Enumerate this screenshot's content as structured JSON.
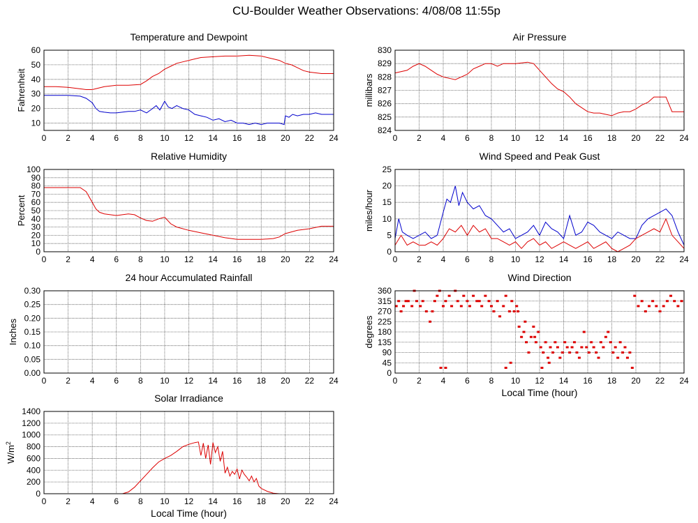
{
  "title": "CU-Boulder Weather Observations: 4/08/08 11:55p",
  "colors": {
    "red": "#dd0000",
    "blue": "#0000cc",
    "grid": "#555555",
    "axis": "#000000"
  },
  "chart_data": [
    {
      "id": "temp",
      "type": "line",
      "title": "Temperature and Dewpoint",
      "ylabel": "Fahrenheit",
      "xlabel": "",
      "xlim": [
        0,
        24
      ],
      "ylim": [
        5,
        60
      ],
      "xticks": [
        0,
        2,
        4,
        6,
        8,
        10,
        12,
        14,
        16,
        18,
        20,
        22,
        24
      ],
      "yticks": [
        10,
        20,
        30,
        40,
        50,
        60
      ],
      "grid": true,
      "series": [
        {
          "color": "red",
          "x": [
            0,
            1,
            2,
            3,
            3.5,
            4,
            4.5,
            5,
            6,
            7,
            8,
            8.5,
            9,
            9.5,
            10,
            10.5,
            11,
            11.5,
            12,
            12.5,
            13,
            14,
            15,
            16,
            17,
            18,
            18.5,
            19,
            19.5,
            20,
            20.5,
            21,
            21.5,
            22,
            23,
            24
          ],
          "y": [
            35,
            35,
            34.5,
            33.5,
            33,
            33,
            34,
            35,
            36,
            36,
            36.5,
            39,
            42,
            44,
            47,
            49,
            51,
            52,
            53,
            54,
            55,
            55.5,
            56,
            56,
            56.5,
            56,
            55,
            54,
            53,
            51,
            50,
            48,
            46,
            45,
            44,
            44
          ]
        },
        {
          "color": "blue",
          "x": [
            0,
            1,
            2,
            3,
            3.5,
            4,
            4.3,
            4.6,
            5,
            5.5,
            6,
            7,
            7.5,
            8,
            8.5,
            9,
            9.3,
            9.6,
            10,
            10.3,
            10.6,
            11,
            11.5,
            12,
            12.5,
            13,
            13.5,
            14,
            14.5,
            15,
            15.5,
            16,
            16.5,
            17,
            17.5,
            18,
            18.5,
            19,
            19.5,
            19.9,
            20,
            20.3,
            20.6,
            21,
            21.5,
            22,
            22.5,
            23,
            23.5,
            24
          ],
          "y": [
            29,
            29,
            29,
            28.5,
            27,
            24,
            20,
            18,
            17.5,
            17,
            17,
            18,
            18,
            19,
            17,
            20,
            22,
            19,
            25,
            21,
            20,
            22,
            20,
            19,
            16,
            15,
            14,
            12,
            13,
            11,
            12,
            10,
            10,
            9,
            10,
            9,
            10,
            10,
            10,
            9,
            15,
            14,
            16,
            15,
            16,
            16,
            17,
            16,
            16,
            16
          ]
        }
      ]
    },
    {
      "id": "pressure",
      "type": "line",
      "title": "Air Pressure",
      "ylabel": "millibars",
      "xlabel": "",
      "xlim": [
        0,
        24
      ],
      "ylim": [
        824,
        830
      ],
      "xticks": [
        0,
        2,
        4,
        6,
        8,
        10,
        12,
        14,
        16,
        18,
        20,
        22,
        24
      ],
      "yticks": [
        824,
        825,
        826,
        827,
        828,
        829,
        830
      ],
      "grid": true,
      "series": [
        {
          "color": "red",
          "x": [
            0,
            1,
            1.5,
            2,
            2.5,
            3,
            3.5,
            4,
            4.5,
            5,
            5.5,
            6,
            6.5,
            7,
            7.5,
            8,
            8.5,
            9,
            10,
            11,
            11.5,
            12,
            12.5,
            13,
            13.5,
            14,
            14.5,
            15,
            15.5,
            16,
            16.5,
            17,
            17.5,
            18,
            18.5,
            19,
            19.5,
            20,
            20.5,
            21,
            21.5,
            22,
            22.5,
            23,
            24
          ],
          "y": [
            828.3,
            828.5,
            828.8,
            829,
            828.8,
            828.5,
            828.2,
            828,
            827.9,
            827.8,
            828,
            828.2,
            828.6,
            828.8,
            829,
            829,
            828.8,
            829,
            829,
            829.1,
            829,
            828.5,
            828,
            827.5,
            827.1,
            826.9,
            826.5,
            826,
            825.7,
            825.4,
            825.3,
            825.3,
            825.2,
            825.1,
            825.3,
            825.4,
            825.4,
            825.6,
            825.9,
            826.1,
            826.5,
            826.5,
            826.5,
            825.4,
            825.4
          ]
        }
      ]
    },
    {
      "id": "rh",
      "type": "line",
      "title": "Relative Humidity",
      "ylabel": "Percent",
      "xlabel": "",
      "xlim": [
        0,
        24
      ],
      "ylim": [
        0,
        100
      ],
      "xticks": [
        0,
        2,
        4,
        6,
        8,
        10,
        12,
        14,
        16,
        18,
        20,
        22,
        24
      ],
      "yticks": [
        0,
        10,
        20,
        30,
        40,
        50,
        60,
        70,
        80,
        90,
        100
      ],
      "grid": true,
      "series": [
        {
          "color": "red",
          "x": [
            0,
            1,
            2,
            3,
            3.5,
            4,
            4.3,
            4.6,
            5,
            5.5,
            6,
            6.5,
            7,
            7.5,
            8,
            8.5,
            9,
            9.5,
            10,
            10.5,
            11,
            12,
            13,
            14,
            15,
            16,
            17,
            18,
            19,
            19.5,
            20,
            21,
            22,
            23,
            24
          ],
          "y": [
            78,
            78,
            78,
            78,
            73,
            60,
            52,
            48,
            46,
            45,
            44,
            45,
            46,
            45,
            41,
            38,
            37,
            40,
            42,
            34,
            30,
            26,
            23,
            20,
            17,
            15,
            15,
            15,
            16,
            18,
            22,
            26,
            28,
            31,
            31
          ]
        }
      ]
    },
    {
      "id": "wind",
      "type": "line",
      "title": "Wind Speed and Peak Gust",
      "ylabel": "miles/hour",
      "xlabel": "",
      "xlim": [
        0,
        24
      ],
      "ylim": [
        0,
        25
      ],
      "xticks": [
        0,
        2,
        4,
        6,
        8,
        10,
        12,
        14,
        16,
        18,
        20,
        22,
        24
      ],
      "yticks": [
        0,
        5,
        10,
        15,
        20,
        25
      ],
      "grid": true,
      "series": [
        {
          "color": "blue",
          "x": [
            0,
            0.3,
            0.6,
            1,
            1.5,
            2,
            2.5,
            3,
            3.5,
            4,
            4.3,
            4.6,
            5,
            5.3,
            5.6,
            6,
            6.5,
            7,
            7.5,
            8,
            8.5,
            9,
            9.5,
            10,
            10.5,
            11,
            11.5,
            12,
            12.5,
            13,
            13.5,
            14,
            14.5,
            15,
            15.5,
            16,
            16.5,
            17,
            17.5,
            18,
            18.5,
            19,
            19.5,
            20,
            20.5,
            21,
            21.5,
            22,
            22.5,
            23,
            23.5,
            24
          ],
          "y": [
            4,
            10,
            6,
            5,
            4,
            5,
            6,
            4,
            5,
            12,
            16,
            15,
            20,
            14,
            18,
            15,
            13,
            14,
            11,
            10,
            8,
            6,
            7,
            4,
            5,
            6,
            8,
            5,
            9,
            7,
            6,
            4,
            11,
            5,
            6,
            9,
            8,
            6,
            5,
            4,
            6,
            5,
            4,
            4,
            8,
            10,
            11,
            12,
            13,
            11,
            6,
            2
          ]
        },
        {
          "color": "red",
          "x": [
            0,
            0.5,
            1,
            1.5,
            2,
            2.5,
            3,
            3.5,
            4,
            4.5,
            5,
            5.5,
            6,
            6.5,
            7,
            7.5,
            8,
            8.5,
            9,
            9.5,
            10,
            10.5,
            11,
            11.5,
            12,
            12.5,
            13,
            13.5,
            14,
            14.5,
            15,
            15.5,
            16,
            16.5,
            17,
            17.5,
            18,
            18.5,
            19,
            19.5,
            20,
            20.5,
            21,
            21.5,
            22,
            22.5,
            23,
            23.5,
            24
          ],
          "y": [
            2,
            5,
            2,
            3,
            2,
            2,
            3,
            2,
            4,
            7,
            6,
            8,
            5,
            8,
            6,
            7,
            4,
            4,
            3,
            2,
            3,
            1,
            3,
            4,
            2,
            3,
            1,
            2,
            3,
            2,
            1,
            2,
            3,
            1,
            2,
            3,
            1,
            0,
            1,
            2,
            4,
            5,
            6,
            7,
            6,
            10,
            5,
            3,
            1
          ]
        }
      ]
    },
    {
      "id": "rain",
      "type": "line",
      "title": "24 hour Accumulated Rainfall",
      "ylabel": "Inches",
      "xlabel": "",
      "xlim": [
        0,
        24
      ],
      "ylim": [
        0,
        0.3
      ],
      "xticks": [
        0,
        2,
        4,
        6,
        8,
        10,
        12,
        14,
        16,
        18,
        20,
        22,
        24
      ],
      "yticks": [
        "0.00",
        "0.05",
        "0.10",
        "0.15",
        "0.20",
        "0.25",
        "0.30"
      ],
      "grid": true,
      "series": [
        {
          "color": "red",
          "x": [
            0,
            24
          ],
          "y": [
            0,
            0
          ]
        }
      ]
    },
    {
      "id": "winddir",
      "type": "scatter",
      "title": "Wind Direction",
      "ylabel": "degrees",
      "xlabel": "Local Time (hour)",
      "xlim": [
        0,
        24
      ],
      "ylim": [
        0,
        360
      ],
      "xticks": [
        0,
        2,
        4,
        6,
        8,
        10,
        12,
        14,
        16,
        18,
        20,
        22,
        24
      ],
      "yticks": [
        0,
        45,
        90,
        135,
        180,
        225,
        270,
        315,
        360
      ],
      "grid": true,
      "series": [
        {
          "color": "red",
          "x": [
            0.1,
            0.3,
            0.5,
            0.7,
            0.9,
            1.1,
            1.4,
            1.6,
            1.8,
            2.1,
            2.3,
            2.6,
            2.9,
            3.1,
            3.3,
            3.5,
            3.7,
            4,
            4.2,
            4.5,
            4.7,
            5,
            5.2,
            5.5,
            5.7,
            6,
            6.2,
            6.5,
            6.8,
            7,
            7.2,
            7.5,
            7.8,
            8,
            8.2,
            8.5,
            8.7,
            9,
            9.2,
            9.5,
            9.7,
            9.9,
            10.1,
            10.3,
            10.5,
            10.7,
            10.9,
            11.1,
            11.3,
            11.5,
            11.7,
            11.9,
            12.1,
            12.3,
            12.5,
            12.7,
            12.9,
            13.1,
            13.3,
            13.5,
            13.7,
            13.9,
            14.1,
            14.3,
            14.5,
            14.7,
            14.9,
            15.1,
            15.3,
            15.5,
            15.7,
            15.9,
            16.1,
            16.3,
            16.5,
            16.7,
            16.9,
            17.1,
            17.3,
            17.5,
            17.7,
            17.9,
            18.1,
            18.3,
            18.5,
            18.7,
            18.9,
            19.1,
            19.3,
            19.5,
            19.7,
            19.9,
            20.2,
            20.5,
            20.8,
            21.1,
            21.4,
            21.7,
            22,
            22.3,
            22.6,
            22.9,
            23.2,
            23.5,
            23.8,
            3.8,
            4.2,
            9.2,
            9.6,
            10.2,
            10.8,
            11.6,
            12.2,
            12.8
          ],
          "y": [
            293,
            315,
            270,
            293,
            315,
            315,
            293,
            360,
            315,
            293,
            315,
            270,
            225,
            270,
            315,
            338,
            360,
            293,
            315,
            338,
            293,
            360,
            315,
            293,
            338,
            315,
            293,
            338,
            315,
            315,
            293,
            338,
            315,
            293,
            270,
            315,
            248,
            293,
            338,
            270,
            315,
            270,
            293,
            203,
            158,
            180,
            135,
            90,
            158,
            203,
            135,
            180,
            113,
            90,
            135,
            67,
            113,
            90,
            135,
            113,
            67,
            90,
            135,
            113,
            90,
            113,
            135,
            90,
            67,
            113,
            180,
            113,
            90,
            135,
            113,
            90,
            67,
            135,
            113,
            158,
            180,
            135,
            90,
            113,
            67,
            135,
            90,
            113,
            67,
            90,
            23,
            338,
            293,
            315,
            270,
            293,
            315,
            293,
            270,
            293,
            315,
            338,
            315,
            293,
            315,
            23,
            23,
            23,
            45,
            270,
            225,
            158,
            23,
            45
          ]
        }
      ]
    },
    {
      "id": "solar",
      "type": "line",
      "title": "Solar Irradiance",
      "ylabel": "W/m",
      "ylabel_sup": "2",
      "xlabel": "Local Time (hour)",
      "xlim": [
        0,
        24
      ],
      "ylim": [
        0,
        1400
      ],
      "xticks": [
        0,
        2,
        4,
        6,
        8,
        10,
        12,
        14,
        16,
        18,
        20,
        22,
        24
      ],
      "yticks": [
        0,
        200,
        400,
        600,
        800,
        1000,
        1200,
        1400
      ],
      "grid": true,
      "series": [
        {
          "color": "red",
          "x": [
            0,
            6.5,
            7,
            7.5,
            8,
            8.5,
            9,
            9.5,
            10,
            10.5,
            11,
            11.5,
            12,
            12.5,
            12.8,
            13,
            13.2,
            13.4,
            13.6,
            13.8,
            14,
            14.2,
            14.4,
            14.6,
            14.8,
            15,
            15.2,
            15.4,
            15.6,
            15.8,
            16,
            16.2,
            16.4,
            16.6,
            16.8,
            17,
            17.2,
            17.4,
            17.6,
            17.8,
            18,
            18.5,
            19,
            19.5,
            20,
            24
          ],
          "y": [
            0,
            0,
            30,
            110,
            220,
            330,
            440,
            540,
            600,
            650,
            720,
            800,
            840,
            870,
            880,
            650,
            860,
            600,
            830,
            500,
            870,
            700,
            800,
            550,
            720,
            350,
            450,
            300,
            380,
            330,
            420,
            250,
            400,
            330,
            280,
            220,
            300,
            200,
            260,
            130,
            90,
            40,
            10,
            0,
            0,
            0
          ]
        }
      ]
    }
  ]
}
